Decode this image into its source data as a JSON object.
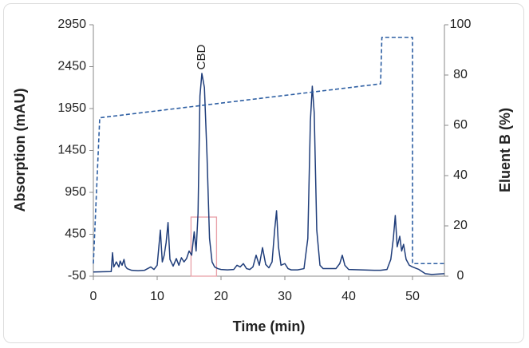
{
  "chart_data": {
    "type": "line",
    "xlabel": "Time (min)",
    "ylabel": "Absorption (mAU)",
    "y2label": "Eluent B (%)",
    "xlim": [
      0,
      55
    ],
    "xticks": [
      0,
      10,
      20,
      30,
      40,
      50
    ],
    "ylim": [
      -50,
      2950
    ],
    "yticks": [
      -50,
      450,
      950,
      1450,
      1950,
      2450,
      2950
    ],
    "y2lim": [
      0,
      100
    ],
    "y2ticks": [
      0,
      20,
      40,
      60,
      80,
      100
    ],
    "series": [
      {
        "color": "#1f3d7a",
        "x": [
          0,
          2.8,
          3,
          3.2,
          3.6,
          4,
          4.2,
          4.5,
          4.8,
          5,
          5.3,
          6,
          7,
          8,
          9,
          9.5,
          10,
          10.5,
          10.8,
          11.1,
          11.4,
          11.7,
          12,
          12.5,
          13,
          13.4,
          13.8,
          14.2,
          14.6,
          15,
          15.4,
          15.8,
          16.1,
          16.4,
          16.7,
          17,
          17.4,
          17.8,
          18.2,
          18.6,
          19,
          19.5,
          20,
          21,
          22,
          22.5,
          23,
          23.5,
          24,
          24.5,
          25,
          25.5,
          26,
          26.5,
          27,
          27.5,
          28,
          28.4,
          28.7,
          29,
          29.4,
          30,
          30.5,
          31,
          32,
          33,
          33.6,
          34,
          34.3,
          34.6,
          35,
          35.5,
          36,
          38,
          38.6,
          39,
          39.4,
          40,
          42,
          44,
          45,
          46,
          46.6,
          47,
          47.3,
          47.6,
          48,
          48.3,
          48.6,
          49,
          49.5,
          50,
          51,
          52,
          53,
          55
        ],
        "values": [
          0,
          5,
          230,
          60,
          120,
          60,
          130,
          80,
          150,
          70,
          40,
          20,
          15,
          20,
          60,
          30,
          80,
          500,
          120,
          200,
          350,
          590,
          150,
          70,
          160,
          80,
          170,
          120,
          160,
          250,
          200,
          480,
          250,
          700,
          2100,
          2369,
          2200,
          1400,
          400,
          120,
          60,
          40,
          30,
          25,
          30,
          80,
          60,
          100,
          40,
          30,
          60,
          200,
          80,
          290,
          90,
          50,
          120,
          500,
          731,
          300,
          80,
          100,
          40,
          25,
          25,
          40,
          400,
          1800,
          2217,
          1900,
          500,
          80,
          40,
          40,
          100,
          200,
          80,
          30,
          25,
          20,
          20,
          30,
          150,
          400,
          674,
          300,
          426,
          250,
          330,
          150,
          80,
          60,
          30,
          -20,
          -30,
          -20
        ]
      },
      {
        "color": "#2e5fa3",
        "axis": "y2",
        "dashed": true,
        "x": [
          0,
          1,
          45,
          45.2,
          50,
          50,
          55
        ],
        "values": [
          5,
          63,
          76.5,
          95,
          95,
          5,
          5
        ]
      }
    ],
    "annotations": [
      {
        "text": "CBD",
        "x": 17,
        "y": 2450
      }
    ],
    "highlight": {
      "x": [
        15.3,
        19.3
      ],
      "y": [
        -50,
        655
      ],
      "color": "#e8a0a8"
    }
  }
}
